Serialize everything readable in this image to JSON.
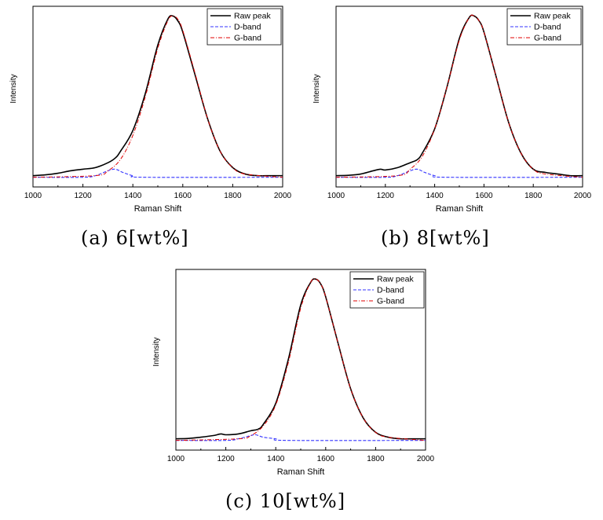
{
  "colors": {
    "raw": "#000000",
    "d_band": "#3333ff",
    "g_band": "#e00000",
    "axis": "#000000",
    "background": "#ffffff"
  },
  "chart_data": [
    {
      "type": "line",
      "caption": "(a) 6[wt%]",
      "xlabel": "Raman Shift",
      "ylabel": "Intensity",
      "xlim": [
        1000,
        2000
      ],
      "xticks": [
        1000,
        1200,
        1400,
        1600,
        1800,
        2000
      ],
      "y_ticks_shown": false,
      "grid": false,
      "legend_position": "top-right",
      "series": [
        {
          "name": "Raw peak",
          "style": "solid",
          "color": "#000000",
          "x": [
            1000,
            1050,
            1100,
            1150,
            1200,
            1250,
            1300,
            1330,
            1350,
            1400,
            1450,
            1500,
            1540,
            1560,
            1580,
            1600,
            1650,
            1700,
            1750,
            1800,
            1850,
            1900,
            1950,
            2000
          ],
          "y": [
            0.01,
            0.015,
            0.025,
            0.04,
            0.05,
            0.06,
            0.09,
            0.12,
            0.16,
            0.29,
            0.52,
            0.82,
            0.98,
            1.0,
            0.97,
            0.9,
            0.63,
            0.36,
            0.16,
            0.06,
            0.02,
            0.01,
            0.01,
            0.01
          ]
        },
        {
          "name": "D-band",
          "style": "dashed",
          "color": "#3333ff",
          "x": [
            1000,
            1200,
            1250,
            1300,
            1330,
            1360,
            1400,
            1450,
            2000
          ],
          "y": [
            0.0,
            0.0,
            0.01,
            0.04,
            0.05,
            0.03,
            0.01,
            0.0,
            0.0
          ]
        },
        {
          "name": "G-band",
          "style": "dash-dot",
          "color": "#e00000",
          "x": [
            1000,
            1250,
            1300,
            1350,
            1400,
            1450,
            1500,
            1540,
            1560,
            1580,
            1600,
            1650,
            1700,
            1750,
            1800,
            1850,
            2000
          ],
          "y": [
            0.0,
            0.01,
            0.04,
            0.11,
            0.26,
            0.5,
            0.8,
            0.97,
            1.0,
            0.98,
            0.91,
            0.64,
            0.36,
            0.16,
            0.06,
            0.02,
            0.0
          ]
        }
      ]
    },
    {
      "type": "line",
      "caption": "(b) 8[wt%]",
      "xlabel": "Raman Shift",
      "ylabel": "Intensity",
      "xlim": [
        1000,
        2000
      ],
      "xticks": [
        1000,
        1200,
        1400,
        1600,
        1800,
        2000
      ],
      "y_ticks_shown": false,
      "grid": false,
      "legend_position": "top-right",
      "series": [
        {
          "name": "Raw peak",
          "style": "solid",
          "color": "#000000",
          "x": [
            1000,
            1050,
            1100,
            1150,
            1180,
            1200,
            1250,
            1300,
            1330,
            1350,
            1400,
            1450,
            1500,
            1540,
            1560,
            1580,
            1600,
            1650,
            1700,
            1750,
            1800,
            1850,
            1900,
            1950,
            2000
          ],
          "y": [
            0.01,
            0.012,
            0.02,
            0.04,
            0.05,
            0.045,
            0.06,
            0.09,
            0.11,
            0.15,
            0.3,
            0.56,
            0.86,
            0.99,
            1.0,
            0.97,
            0.9,
            0.62,
            0.34,
            0.15,
            0.05,
            0.03,
            0.02,
            0.01,
            0.01
          ]
        },
        {
          "name": "D-band",
          "style": "dashed",
          "color": "#3333ff",
          "x": [
            1000,
            1200,
            1250,
            1300,
            1330,
            1360,
            1400,
            1450,
            2000
          ],
          "y": [
            0.0,
            0.0,
            0.01,
            0.04,
            0.05,
            0.03,
            0.01,
            0.0,
            0.0
          ]
        },
        {
          "name": "G-band",
          "style": "dash-dot",
          "color": "#e00000",
          "x": [
            1000,
            1250,
            1300,
            1350,
            1400,
            1450,
            1500,
            1540,
            1560,
            1580,
            1600,
            1650,
            1700,
            1750,
            1800,
            1850,
            2000
          ],
          "y": [
            0.0,
            0.01,
            0.05,
            0.13,
            0.3,
            0.56,
            0.85,
            0.99,
            1.0,
            0.97,
            0.9,
            0.62,
            0.34,
            0.15,
            0.05,
            0.02,
            0.0
          ]
        }
      ]
    },
    {
      "type": "line",
      "caption": "(c) 10[wt%]",
      "xlabel": "Raman Shift",
      "ylabel": "Intensity",
      "xlim": [
        1000,
        2000
      ],
      "xticks": [
        1000,
        1200,
        1400,
        1600,
        1800,
        2000
      ],
      "y_ticks_shown": false,
      "grid": false,
      "legend_position": "top-right",
      "series": [
        {
          "name": "Raw peak",
          "style": "solid",
          "color": "#000000",
          "x": [
            1000,
            1050,
            1100,
            1150,
            1180,
            1200,
            1250,
            1300,
            1330,
            1350,
            1400,
            1450,
            1500,
            1540,
            1560,
            1580,
            1600,
            1650,
            1700,
            1750,
            1800,
            1850,
            1900,
            1950,
            2000
          ],
          "y": [
            0.01,
            0.012,
            0.02,
            0.03,
            0.04,
            0.035,
            0.04,
            0.06,
            0.07,
            0.1,
            0.23,
            0.5,
            0.84,
            0.98,
            1.0,
            0.97,
            0.89,
            0.6,
            0.32,
            0.14,
            0.05,
            0.02,
            0.01,
            0.01,
            0.01
          ]
        },
        {
          "name": "D-band",
          "style": "dashed",
          "color": "#3333ff",
          "x": [
            1000,
            1200,
            1250,
            1300,
            1320,
            1350,
            1400,
            1450,
            2000
          ],
          "y": [
            0.0,
            0.0,
            0.01,
            0.03,
            0.035,
            0.02,
            0.01,
            0.0,
            0.0
          ]
        },
        {
          "name": "G-band",
          "style": "dash-dot",
          "color": "#e00000",
          "x": [
            1000,
            1250,
            1300,
            1350,
            1400,
            1450,
            1500,
            1540,
            1560,
            1580,
            1600,
            1650,
            1700,
            1750,
            1800,
            1850,
            2000
          ],
          "y": [
            0.0,
            0.01,
            0.03,
            0.09,
            0.22,
            0.48,
            0.82,
            0.98,
            1.0,
            0.97,
            0.89,
            0.6,
            0.32,
            0.14,
            0.05,
            0.02,
            0.0
          ]
        }
      ]
    }
  ]
}
